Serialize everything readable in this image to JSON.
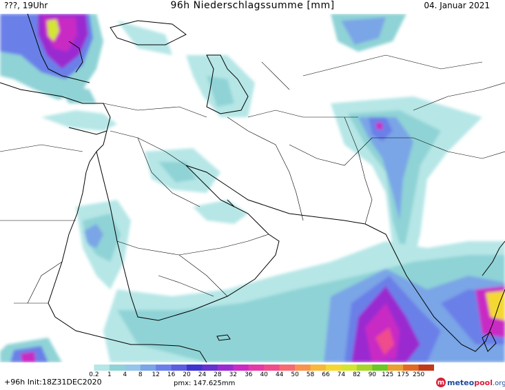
{
  "header": {
    "left": "???, 19Uhr",
    "title": "96h Niederschlagssumme [mm]",
    "date": "04. Januar 2021"
  },
  "colorbar": {
    "labels": [
      "0.2",
      "1",
      "4",
      "8",
      "12",
      "16",
      "20",
      "24",
      "28",
      "32",
      "36",
      "40",
      "44",
      "50",
      "58",
      "66",
      "74",
      "82",
      "90",
      "125",
      "175",
      "250"
    ],
    "colors": [
      "#ffffff",
      "#b6e6e6",
      "#8fd3d6",
      "#93c6e9",
      "#7aa5e6",
      "#6a80e8",
      "#5a5de0",
      "#3d33d0",
      "#6432d0",
      "#9a2bd0",
      "#c92bc4",
      "#e33aa8",
      "#f04c8c",
      "#f66a72",
      "#f8934e",
      "#f8b83a",
      "#f4d832",
      "#d4e530",
      "#a6d62a",
      "#6cc624",
      "#e8a030",
      "#e06a24",
      "#c03a1a"
    ]
  },
  "footer": {
    "lead": "+96h",
    "init": "Init:18Z31DEC2020",
    "pmax": "pmx: 147.625mm"
  },
  "logo": {
    "mark": "m",
    "name_a": "meteo",
    "name_b": "pool",
    "name_c": ".org"
  },
  "map_icons": [
    "precipitation-field",
    "coastline",
    "country-borders"
  ]
}
